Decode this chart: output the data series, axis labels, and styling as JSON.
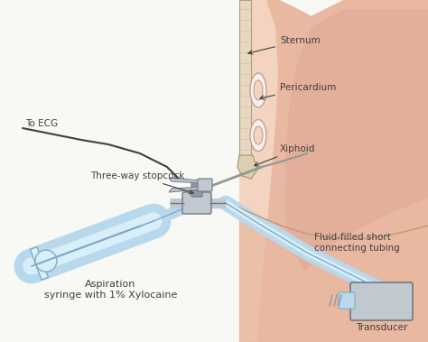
{
  "bg_color": "#f8f8f5",
  "labels": {
    "sternum": "Sternum",
    "pericardium": "Pericardium",
    "xiphoid": "Xiphoid",
    "ecg": "To ECG",
    "stopcock": "Three-way stopcock",
    "syringe": "Aspiration\nsyringe with 1% Xylocaine",
    "fluid_tubing": "Fluid-filled short\nconnecting tubing",
    "transducer": "Transducer"
  },
  "skin_outer": "#e8b8a0",
  "skin_inner": "#f2d4c0",
  "skin_dark": "#d4956e",
  "sternum_fill": "#e8d8c0",
  "sternum_edge": "#b0a080",
  "pericardium_fill": "#e8d0c8",
  "pericardium_edge": "#c0a098",
  "effusion_fill": "#d8c8c0",
  "bone_fill": "#ddd0b0",
  "bone_edge": "#a09070",
  "blue_tube": "#b8d8ec",
  "blue_tube_edge": "#80aac8",
  "blue_tube_light": "#d8eef8",
  "gray_device": "#c0c8d0",
  "gray_device_dark": "#9098a8",
  "gray_device_edge": "#707880",
  "needle_color": "#909898",
  "ecg_wire": "#404040",
  "text_color": "#404040",
  "arrow_color": "#404040",
  "font_size": 7.5
}
